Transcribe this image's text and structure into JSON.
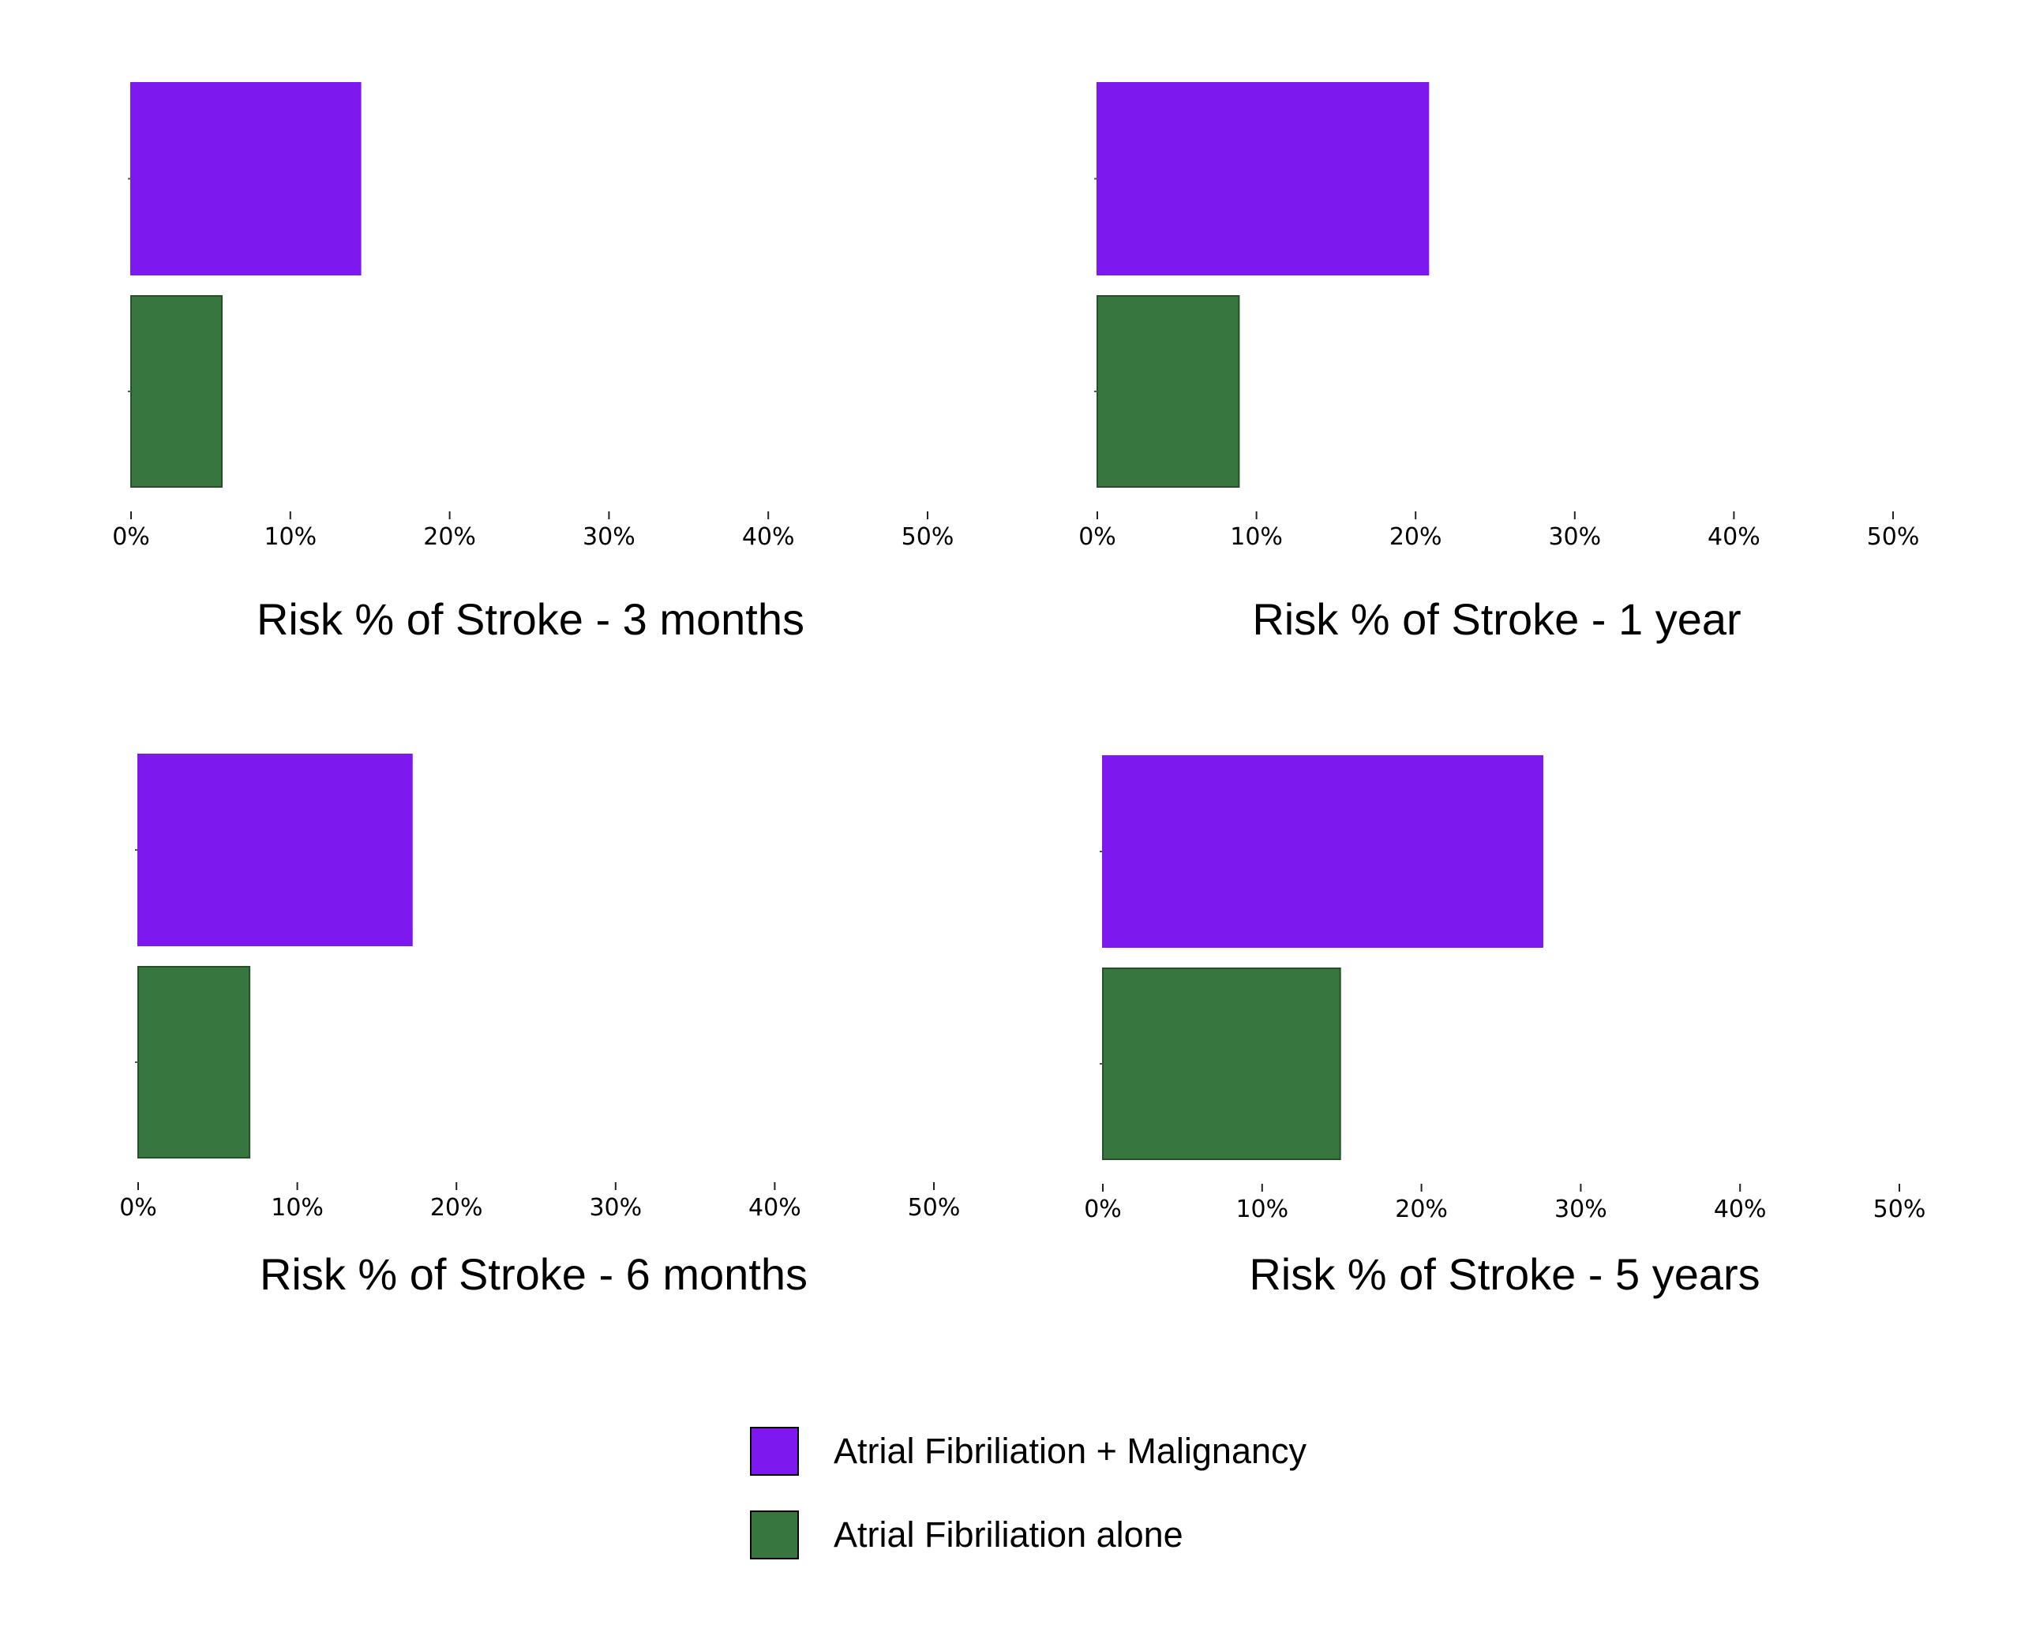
{
  "chart_data": [
    {
      "type": "bar",
      "orientation": "horizontal",
      "title": "Risk % of Stroke - 3 months",
      "xlim": [
        0,
        50
      ],
      "ticks": [
        0,
        10,
        20,
        30,
        40,
        50
      ],
      "tick_labels": [
        "0%",
        "10%",
        "20%",
        "30%",
        "40%",
        "50%"
      ],
      "series": [
        {
          "name": "Atrial Fibriliation + Malignancy",
          "value": 14.4
        },
        {
          "name": "Atrial Fibriliation alone",
          "value": 5.7
        }
      ]
    },
    {
      "type": "bar",
      "orientation": "horizontal",
      "title": "Risk % of Stroke - 1 year",
      "xlim": [
        0,
        50
      ],
      "ticks": [
        0,
        10,
        20,
        30,
        40,
        50
      ],
      "tick_labels": [
        "0%",
        "10%",
        "20%",
        "30%",
        "40%",
        "50%"
      ],
      "series": [
        {
          "name": "Atrial Fibriliation + Malignancy",
          "value": 20.8
        },
        {
          "name": "Atrial Fibriliation alone",
          "value": 8.9
        }
      ]
    },
    {
      "type": "bar",
      "orientation": "horizontal",
      "title": "Risk % of Stroke - 6 months",
      "xlim": [
        0,
        50
      ],
      "ticks": [
        0,
        10,
        20,
        30,
        40,
        50
      ],
      "tick_labels": [
        "0%",
        "10%",
        "20%",
        "30%",
        "40%",
        "50%"
      ],
      "series": [
        {
          "name": "Atrial Fibriliation + Malignancy",
          "value": 17.2
        },
        {
          "name": "Atrial Fibriliation alone",
          "value": 7.0
        }
      ]
    },
    {
      "type": "bar",
      "orientation": "horizontal",
      "title": "Risk % of Stroke - 5 years",
      "xlim": [
        0,
        50
      ],
      "ticks": [
        0,
        10,
        20,
        30,
        40,
        50
      ],
      "tick_labels": [
        "0%",
        "10%",
        "20%",
        "30%",
        "40%",
        "50%"
      ],
      "series": [
        {
          "name": "Atrial Fibriliation + Malignancy",
          "value": 27.6
        },
        {
          "name": "Atrial Fibriliation alone",
          "value": 14.9
        }
      ]
    }
  ],
  "legend": [
    {
      "label": "Atrial Fibriliation + Malignancy",
      "color": "#7d18ee"
    },
    {
      "label": "Atrial Fibriliation alone",
      "color": "#38763f"
    }
  ]
}
